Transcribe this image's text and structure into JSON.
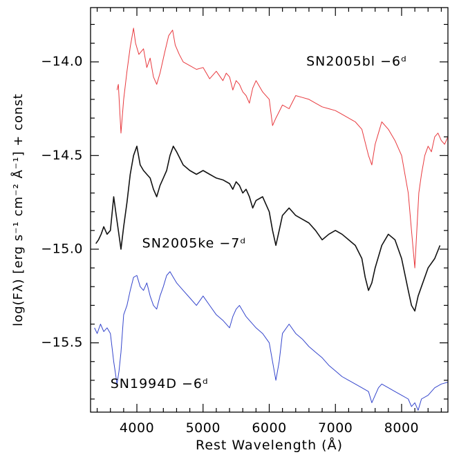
{
  "chart_data": {
    "type": "line",
    "xlabel": "Rest Wavelength (Å)",
    "ylabel": "log(Fλ) [erg s⁻¹ cm⁻² Å⁻¹] + const",
    "xlim": [
      3300,
      8700
    ],
    "ylim": [
      -15.87,
      -13.71
    ],
    "x_ticks": [
      4000,
      5000,
      6000,
      7000,
      8000
    ],
    "x_tick_labels": [
      "4000",
      "5000",
      "6000",
      "7000",
      "8000"
    ],
    "y_ticks": [
      -14.0,
      -14.5,
      -15.0,
      -15.5
    ],
    "y_tick_labels": [
      "−14.0",
      "−14.5",
      "−15.0",
      "−15.5"
    ],
    "grid": false,
    "series": [
      {
        "name": "SN2005bl −6ᵈ",
        "color": "#e8383d",
        "label_x": 6560,
        "label_y": -14.0,
        "x": [
          3700,
          3720,
          3760,
          3800,
          3850,
          3900,
          3950,
          3980,
          4030,
          4100,
          4150,
          4200,
          4250,
          4300,
          4350,
          4420,
          4480,
          4540,
          4580,
          4640,
          4700,
          4800,
          4900,
          5000,
          5100,
          5200,
          5300,
          5350,
          5400,
          5450,
          5500,
          5550,
          5600,
          5650,
          5700,
          5750,
          5800,
          5900,
          6000,
          6050,
          6100,
          6130,
          6200,
          6300,
          6400,
          6500,
          6600,
          6700,
          6800,
          6900,
          7000,
          7100,
          7200,
          7300,
          7400,
          7500,
          7550,
          7600,
          7650,
          7700,
          7800,
          7900,
          8000,
          8100,
          8150,
          8200,
          8230,
          8260,
          8300,
          8350,
          8400,
          8450,
          8500,
          8550,
          8600,
          8650,
          8700
        ],
        "y": [
          -14.15,
          -14.12,
          -14.38,
          -14.2,
          -14.05,
          -13.92,
          -13.82,
          -13.9,
          -13.96,
          -13.93,
          -14.03,
          -13.98,
          -14.08,
          -14.12,
          -14.06,
          -13.95,
          -13.86,
          -13.83,
          -13.91,
          -13.96,
          -14.0,
          -14.02,
          -14.04,
          -14.03,
          -14.09,
          -14.05,
          -14.1,
          -14.06,
          -14.08,
          -14.15,
          -14.1,
          -14.12,
          -14.16,
          -14.18,
          -14.22,
          -14.14,
          -14.1,
          -14.16,
          -14.2,
          -14.34,
          -14.3,
          -14.28,
          -14.23,
          -14.25,
          -14.18,
          -14.19,
          -14.2,
          -14.22,
          -14.24,
          -14.25,
          -14.26,
          -14.28,
          -14.3,
          -14.32,
          -14.36,
          -14.5,
          -14.55,
          -14.44,
          -14.38,
          -14.32,
          -14.36,
          -14.42,
          -14.5,
          -14.7,
          -14.9,
          -15.1,
          -14.9,
          -14.7,
          -14.6,
          -14.5,
          -14.45,
          -14.48,
          -14.4,
          -14.38,
          -14.42,
          -14.44,
          -14.4
        ]
      },
      {
        "name": "SN2005ke −7ᵈ",
        "color": "#111111",
        "label_x": 4080,
        "label_y": -14.97,
        "x": [
          3380,
          3420,
          3460,
          3500,
          3550,
          3600,
          3650,
          3680,
          3720,
          3760,
          3800,
          3850,
          3900,
          3950,
          4000,
          4050,
          4100,
          4150,
          4200,
          4250,
          4300,
          4350,
          4400,
          4450,
          4500,
          4550,
          4600,
          4700,
          4800,
          4900,
          5000,
          5100,
          5200,
          5300,
          5400,
          5450,
          5500,
          5550,
          5600,
          5650,
          5700,
          5750,
          5800,
          5900,
          6000,
          6050,
          6100,
          6150,
          6200,
          6300,
          6400,
          6500,
          6600,
          6700,
          6800,
          6900,
          7000,
          7100,
          7200,
          7300,
          7400,
          7450,
          7500,
          7550,
          7600,
          7700,
          7800,
          7900,
          8000,
          8100,
          8150,
          8200,
          8250,
          8300,
          8400,
          8500,
          8580
        ],
        "y": [
          -14.97,
          -14.95,
          -14.92,
          -14.88,
          -14.92,
          -14.9,
          -14.72,
          -14.8,
          -14.9,
          -15.0,
          -14.88,
          -14.75,
          -14.6,
          -14.5,
          -14.45,
          -14.55,
          -14.58,
          -14.6,
          -14.62,
          -14.68,
          -14.72,
          -14.66,
          -14.62,
          -14.58,
          -14.5,
          -14.45,
          -14.48,
          -14.55,
          -14.58,
          -14.6,
          -14.58,
          -14.6,
          -14.62,
          -14.63,
          -14.65,
          -14.68,
          -14.64,
          -14.66,
          -14.7,
          -14.68,
          -14.72,
          -14.78,
          -14.74,
          -14.72,
          -14.8,
          -14.9,
          -14.98,
          -14.9,
          -14.82,
          -14.78,
          -14.82,
          -14.84,
          -14.86,
          -14.9,
          -14.95,
          -14.92,
          -14.9,
          -14.92,
          -14.95,
          -14.98,
          -15.05,
          -15.15,
          -15.22,
          -15.18,
          -15.1,
          -14.98,
          -14.92,
          -14.95,
          -15.05,
          -15.22,
          -15.3,
          -15.33,
          -15.25,
          -15.2,
          -15.1,
          -15.05,
          -14.98
        ]
      },
      {
        "name": "SN1994D −6ᵈ",
        "color": "#3344cc",
        "label_x": 3600,
        "label_y": -15.72,
        "x": [
          3360,
          3400,
          3450,
          3500,
          3550,
          3600,
          3650,
          3700,
          3730,
          3760,
          3800,
          3850,
          3900,
          3950,
          4000,
          4050,
          4100,
          4150,
          4200,
          4250,
          4300,
          4350,
          4400,
          4450,
          4500,
          4550,
          4600,
          4700,
          4800,
          4900,
          5000,
          5100,
          5200,
          5300,
          5400,
          5450,
          5500,
          5550,
          5600,
          5650,
          5700,
          5800,
          5900,
          6000,
          6050,
          6100,
          6150,
          6200,
          6300,
          6400,
          6500,
          6600,
          6700,
          6800,
          6900,
          7000,
          7100,
          7200,
          7300,
          7400,
          7500,
          7550,
          7600,
          7650,
          7700,
          7800,
          7900,
          8000,
          8100,
          8150,
          8200,
          8250,
          8300,
          8400,
          8500,
          8600,
          8700
        ],
        "y": [
          -15.42,
          -15.45,
          -15.4,
          -15.44,
          -15.42,
          -15.45,
          -15.6,
          -15.72,
          -15.65,
          -15.55,
          -15.35,
          -15.3,
          -15.22,
          -15.15,
          -15.14,
          -15.2,
          -15.22,
          -15.18,
          -15.25,
          -15.3,
          -15.32,
          -15.25,
          -15.2,
          -15.14,
          -15.12,
          -15.15,
          -15.18,
          -15.22,
          -15.26,
          -15.3,
          -15.25,
          -15.3,
          -15.35,
          -15.38,
          -15.42,
          -15.36,
          -15.32,
          -15.3,
          -15.33,
          -15.36,
          -15.38,
          -15.42,
          -15.45,
          -15.5,
          -15.6,
          -15.7,
          -15.6,
          -15.45,
          -15.4,
          -15.45,
          -15.48,
          -15.52,
          -15.55,
          -15.58,
          -15.62,
          -15.65,
          -15.68,
          -15.7,
          -15.72,
          -15.74,
          -15.76,
          -15.82,
          -15.78,
          -15.74,
          -15.72,
          -15.74,
          -15.76,
          -15.78,
          -15.8,
          -15.84,
          -15.82,
          -15.86,
          -15.8,
          -15.78,
          -15.74,
          -15.72,
          -15.71
        ]
      }
    ]
  }
}
